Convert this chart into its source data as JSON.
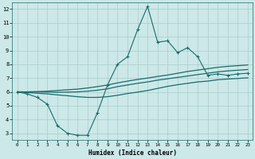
{
  "xlabel": "Humidex (Indice chaleur)",
  "bg_color": "#cce8e8",
  "grid_color": "#aacccc",
  "line_color": "#1a6b6b",
  "xlim": [
    -0.5,
    23.5
  ],
  "ylim": [
    2.5,
    12.5
  ],
  "xticks": [
    0,
    1,
    2,
    3,
    4,
    5,
    6,
    7,
    8,
    9,
    10,
    11,
    12,
    13,
    14,
    15,
    16,
    17,
    18,
    19,
    20,
    21,
    22,
    23
  ],
  "yticks": [
    3,
    4,
    5,
    6,
    7,
    8,
    9,
    10,
    11,
    12
  ],
  "line1_x": [
    0,
    1,
    2,
    3,
    4,
    5,
    6,
    7,
    8,
    9,
    10,
    11,
    12,
    13,
    14,
    15,
    16,
    17,
    18,
    19,
    20,
    21,
    22,
    23
  ],
  "line1_y": [
    6.0,
    5.85,
    5.6,
    5.1,
    3.55,
    3.0,
    2.85,
    2.85,
    4.5,
    6.5,
    8.0,
    8.55,
    10.5,
    12.2,
    9.6,
    9.7,
    8.85,
    9.2,
    8.55,
    7.2,
    7.3,
    7.2,
    7.3,
    7.35
  ],
  "line2_x": [
    0,
    1,
    2,
    3,
    4,
    5,
    6,
    7,
    8,
    9,
    10,
    11,
    12,
    13,
    14,
    15,
    16,
    17,
    18,
    19,
    20,
    21,
    22,
    23
  ],
  "line2_y": [
    6.0,
    6.0,
    6.02,
    6.05,
    6.1,
    6.15,
    6.2,
    6.28,
    6.38,
    6.5,
    6.65,
    6.78,
    6.9,
    7.0,
    7.12,
    7.22,
    7.35,
    7.48,
    7.58,
    7.68,
    7.78,
    7.85,
    7.9,
    7.95
  ],
  "line3_x": [
    0,
    1,
    2,
    3,
    4,
    5,
    6,
    7,
    8,
    9,
    10,
    11,
    12,
    13,
    14,
    15,
    16,
    17,
    18,
    19,
    20,
    21,
    22,
    23
  ],
  "line3_y": [
    6.0,
    5.95,
    5.9,
    5.85,
    5.78,
    5.72,
    5.65,
    5.6,
    5.6,
    5.65,
    5.75,
    5.88,
    5.98,
    6.1,
    6.25,
    6.4,
    6.52,
    6.62,
    6.72,
    6.78,
    6.88,
    6.93,
    6.97,
    7.02
  ],
  "line4_x": [
    0,
    1,
    2,
    3,
    4,
    5,
    6,
    7,
    8,
    9,
    10,
    11,
    12,
    13,
    14,
    15,
    16,
    17,
    18,
    19,
    20,
    21,
    22,
    23
  ],
  "line4_y": [
    6.0,
    6.0,
    6.0,
    5.98,
    5.97,
    5.98,
    6.0,
    6.05,
    6.12,
    6.22,
    6.38,
    6.5,
    6.62,
    6.72,
    6.85,
    6.95,
    7.05,
    7.15,
    7.25,
    7.35,
    7.45,
    7.52,
    7.57,
    7.62
  ]
}
